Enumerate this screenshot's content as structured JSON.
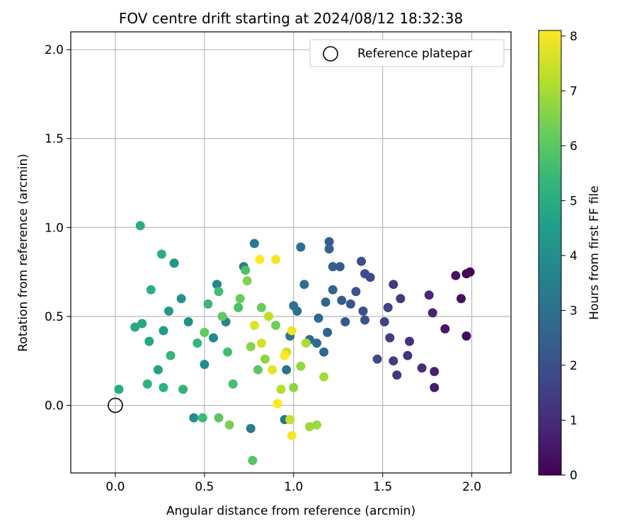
{
  "chart_data": {
    "type": "scatter",
    "title": "FOV centre drift starting at 2024/08/12 18:32:38",
    "xlabel": "Angular distance from reference (arcmin)",
    "ylabel": "Rotation from reference (arcmin)",
    "xlim": [
      -0.25,
      2.22
    ],
    "ylim": [
      -0.38,
      2.1
    ],
    "xticks": [
      "0.0",
      "0.5",
      "1.0",
      "1.5",
      "2.0"
    ],
    "yticks": [
      "0.0",
      "0.5",
      "1.0",
      "1.5",
      "2.0"
    ],
    "xtick_values": [
      0,
      0.5,
      1.0,
      1.5,
      2.0
    ],
    "ytick_values": [
      0,
      0.5,
      1.0,
      1.5,
      2.0
    ],
    "grid": true,
    "legend": {
      "position": "top-right",
      "entries": [
        "Reference platepar"
      ]
    },
    "reference_point": {
      "label": "Reference platepar",
      "x": 0.0,
      "y": 0.0
    },
    "colorbar": {
      "label": "Hours from first FF file",
      "min": 0,
      "max": 8.1,
      "ticks": [
        "0",
        "1",
        "2",
        "3",
        "4",
        "5",
        "6",
        "7",
        "8"
      ],
      "tick_values": [
        0,
        1,
        2,
        3,
        4,
        5,
        6,
        7,
        8
      ],
      "colormap": "viridis"
    },
    "points": [
      [
        1.99,
        0.75,
        0.0
      ],
      [
        1.97,
        0.74,
        0.1
      ],
      [
        1.97,
        0.39,
        0.2
      ],
      [
        1.94,
        0.6,
        0.3
      ],
      [
        1.91,
        0.73,
        0.4
      ],
      [
        1.85,
        0.43,
        0.5
      ],
      [
        1.79,
        0.1,
        0.6
      ],
      [
        1.79,
        0.19,
        0.7
      ],
      [
        1.78,
        0.52,
        0.8
      ],
      [
        1.76,
        0.62,
        0.9
      ],
      [
        1.72,
        0.21,
        1.0
      ],
      [
        1.65,
        0.36,
        1.1
      ],
      [
        1.64,
        0.28,
        1.2
      ],
      [
        1.6,
        0.6,
        1.3
      ],
      [
        1.58,
        0.17,
        1.3
      ],
      [
        1.56,
        0.68,
        1.4
      ],
      [
        1.56,
        0.25,
        1.5
      ],
      [
        1.54,
        0.38,
        1.5
      ],
      [
        1.53,
        0.55,
        1.6
      ],
      [
        1.51,
        0.47,
        1.7
      ],
      [
        1.47,
        0.26,
        1.8
      ],
      [
        1.43,
        0.72,
        1.8
      ],
      [
        1.4,
        0.74,
        1.9
      ],
      [
        1.38,
        0.81,
        1.9
      ],
      [
        1.39,
        0.53,
        2.0
      ],
      [
        1.4,
        0.48,
        2.1
      ],
      [
        1.35,
        0.64,
        2.1
      ],
      [
        1.32,
        0.57,
        2.2
      ],
      [
        1.29,
        0.47,
        2.2
      ],
      [
        1.27,
        0.59,
        2.3
      ],
      [
        1.26,
        0.78,
        2.3
      ],
      [
        1.22,
        0.78,
        2.4
      ],
      [
        1.2,
        0.92,
        2.4
      ],
      [
        1.2,
        0.88,
        2.5
      ],
      [
        1.22,
        0.65,
        2.5
      ],
      [
        1.19,
        0.41,
        2.6
      ],
      [
        1.18,
        0.58,
        2.6
      ],
      [
        1.17,
        0.3,
        2.7
      ],
      [
        1.14,
        0.49,
        2.7
      ],
      [
        1.13,
        0.35,
        2.8
      ],
      [
        1.09,
        0.37,
        2.8
      ],
      [
        1.06,
        0.68,
        2.9
      ],
      [
        1.04,
        0.89,
        2.9
      ],
      [
        1.02,
        0.53,
        3.0
      ],
      [
        1.0,
        0.56,
        3.0
      ],
      [
        0.98,
        0.39,
        3.1
      ],
      [
        0.96,
        0.2,
        3.1
      ],
      [
        0.95,
        -0.08,
        3.2
      ],
      [
        0.78,
        0.91,
        3.3
      ],
      [
        0.76,
        -0.13,
        3.4
      ],
      [
        0.72,
        0.78,
        3.5
      ],
      [
        0.62,
        0.47,
        3.6
      ],
      [
        0.57,
        0.68,
        3.7
      ],
      [
        0.55,
        0.38,
        3.8
      ],
      [
        0.5,
        0.23,
        3.9
      ],
      [
        0.44,
        -0.07,
        4.0
      ],
      [
        0.41,
        0.47,
        4.1
      ],
      [
        0.37,
        0.6,
        4.2
      ],
      [
        0.33,
        0.8,
        4.3
      ],
      [
        0.3,
        0.53,
        4.4
      ],
      [
        0.27,
        0.42,
        4.5
      ],
      [
        0.24,
        0.2,
        4.6
      ],
      [
        0.19,
        0.36,
        4.7
      ],
      [
        0.15,
        0.46,
        4.8
      ],
      [
        0.11,
        0.44,
        4.9
      ],
      [
        0.02,
        0.09,
        5.0
      ],
      [
        0.14,
        1.01,
        5.0
      ],
      [
        0.26,
        0.85,
        5.1
      ],
      [
        0.2,
        0.65,
        5.1
      ],
      [
        0.18,
        0.12,
        5.2
      ],
      [
        0.27,
        0.1,
        5.2
      ],
      [
        0.31,
        0.28,
        5.3
      ],
      [
        0.38,
        0.09,
        5.3
      ],
      [
        0.46,
        0.35,
        5.4
      ],
      [
        0.49,
        -0.07,
        5.5
      ],
      [
        0.52,
        0.57,
        5.5
      ],
      [
        0.58,
        0.64,
        5.6
      ],
      [
        0.63,
        0.3,
        5.6
      ],
      [
        0.66,
        0.12,
        5.7
      ],
      [
        0.69,
        0.55,
        5.7
      ],
      [
        0.73,
        0.76,
        5.8
      ],
      [
        0.77,
        -0.31,
        5.9
      ],
      [
        0.8,
        0.2,
        6.0
      ],
      [
        0.58,
        -0.07,
        6.0
      ],
      [
        0.5,
        0.41,
        6.1
      ],
      [
        0.6,
        0.5,
        6.1
      ],
      [
        0.7,
        0.6,
        6.2
      ],
      [
        0.82,
        0.55,
        6.2
      ],
      [
        0.9,
        0.45,
        6.3
      ],
      [
        0.64,
        -0.11,
        6.4
      ],
      [
        0.74,
        0.7,
        6.5
      ],
      [
        0.76,
        0.33,
        6.6
      ],
      [
        0.84,
        0.26,
        6.7
      ],
      [
        1.0,
        0.1,
        6.7
      ],
      [
        1.04,
        0.22,
        6.8
      ],
      [
        1.09,
        -0.12,
        6.9
      ],
      [
        1.13,
        -0.11,
        6.9
      ],
      [
        1.17,
        0.16,
        7.0
      ],
      [
        1.07,
        0.35,
        7.1
      ],
      [
        0.93,
        0.09,
        7.2
      ],
      [
        0.86,
        0.5,
        7.3
      ],
      [
        0.98,
        -0.08,
        7.4
      ],
      [
        0.96,
        0.3,
        7.5
      ],
      [
        0.82,
        0.35,
        7.6
      ],
      [
        0.78,
        0.45,
        7.7
      ],
      [
        0.88,
        0.2,
        7.8
      ],
      [
        0.99,
        0.42,
        7.9
      ],
      [
        0.9,
        0.82,
        8.0
      ],
      [
        0.81,
        0.82,
        8.1
      ],
      [
        0.99,
        -0.17,
        8.0
      ],
      [
        0.91,
        0.01,
        8.1
      ],
      [
        0.95,
        0.28,
        8.1
      ]
    ]
  }
}
